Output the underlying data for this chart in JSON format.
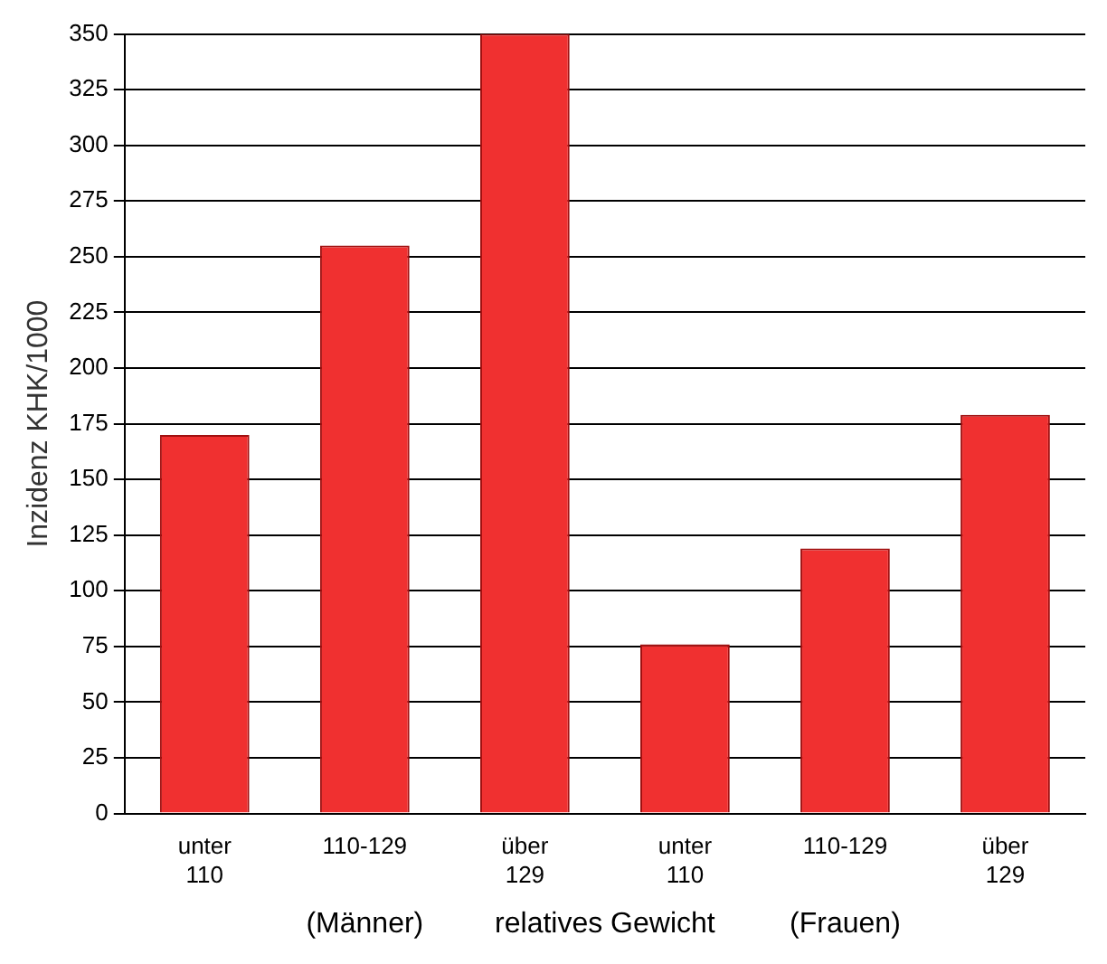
{
  "chart_data": {
    "type": "bar",
    "ylabel": "Inzidenz KHK/1000",
    "xlabel": "relatives Gewicht",
    "categories": [
      "unter 110",
      "110-129",
      "über 129",
      "unter 110",
      "110-129",
      "über 129"
    ],
    "values": [
      170,
      255,
      350,
      76,
      119,
      179
    ],
    "color": "#f03030",
    "ylim": [
      0,
      350
    ],
    "yticks": [
      0,
      25,
      50,
      75,
      100,
      125,
      150,
      175,
      200,
      225,
      250,
      275,
      300,
      325,
      350
    ],
    "grid": "y",
    "legend": false,
    "annotations": [
      "(Männer)",
      "(Frauen)"
    ]
  }
}
